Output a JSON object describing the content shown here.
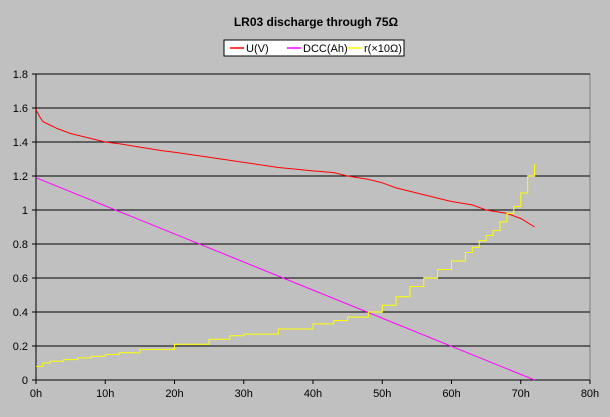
{
  "chart_data": {
    "type": "line",
    "title": "LR03 discharge through 75Ω",
    "xlabel": "",
    "ylabel": "",
    "xlim": [
      0,
      80
    ],
    "ylim": [
      0,
      1.8
    ],
    "x_ticks": [
      "0h",
      "10h",
      "20h",
      "30h",
      "40h",
      "50h",
      "60h",
      "70h",
      "80h"
    ],
    "y_ticks": [
      "0",
      "0.2",
      "0.4",
      "0.6",
      "0.8",
      "1",
      "1.2",
      "1.4",
      "1.6",
      "1.8"
    ],
    "grid": "horizontal",
    "legend_position": "top",
    "plot_background": "#c0c0c0",
    "series": [
      {
        "name": "U(V)",
        "color": "#ff0000",
        "x": [
          0,
          0.5,
          1,
          2,
          3,
          5,
          8,
          10,
          12,
          15,
          18,
          20,
          25,
          30,
          35,
          40,
          43,
          45,
          48,
          50,
          52,
          55,
          58,
          60,
          63,
          65,
          68,
          70,
          72
        ],
        "y": [
          1.59,
          1.55,
          1.52,
          1.5,
          1.48,
          1.45,
          1.42,
          1.4,
          1.39,
          1.37,
          1.35,
          1.34,
          1.31,
          1.28,
          1.25,
          1.23,
          1.22,
          1.2,
          1.18,
          1.16,
          1.13,
          1.1,
          1.07,
          1.05,
          1.03,
          1.0,
          0.98,
          0.95,
          0.9
        ]
      },
      {
        "name": "DCC(Ah)",
        "color": "#ff00ff",
        "x": [
          0,
          72
        ],
        "y": [
          1.19,
          0.0
        ]
      },
      {
        "name": "r(×10Ω)",
        "color": "#ffff00",
        "x": [
          0,
          1,
          2,
          4,
          6,
          8,
          10,
          12,
          15,
          20,
          25,
          28,
          30,
          35,
          40,
          43,
          45,
          46,
          48,
          50,
          52,
          54,
          56,
          58,
          60,
          62,
          63,
          64,
          65,
          66,
          67,
          68,
          69,
          70,
          71,
          72
        ],
        "y": [
          0.08,
          0.1,
          0.11,
          0.12,
          0.13,
          0.14,
          0.15,
          0.16,
          0.18,
          0.21,
          0.24,
          0.26,
          0.27,
          0.3,
          0.33,
          0.35,
          0.37,
          0.37,
          0.4,
          0.44,
          0.49,
          0.55,
          0.6,
          0.65,
          0.7,
          0.75,
          0.78,
          0.82,
          0.85,
          0.88,
          0.93,
          0.98,
          1.02,
          1.1,
          1.2,
          1.27
        ]
      }
    ]
  }
}
